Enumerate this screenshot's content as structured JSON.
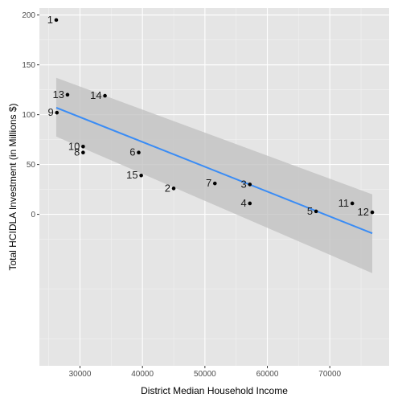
{
  "chart_data": {
    "type": "scatter",
    "title": "",
    "xlabel": "District Median Household Income",
    "ylabel": "Total HCIDLA Investment (in Millions $)",
    "xlim": [
      23500,
      79500
    ],
    "ylim": [
      -152,
      207
    ],
    "x_ticks": [
      30000,
      40000,
      50000,
      60000,
      70000
    ],
    "x_tick_labels": [
      "30000",
      "40000",
      "50000",
      "60000",
      "70000"
    ],
    "y_ticks": [
      0,
      50,
      100,
      150,
      200
    ],
    "y_tick_labels": [
      "0",
      "50",
      "100",
      "150",
      "200"
    ],
    "grid": true,
    "legend": "none",
    "points": [
      {
        "label": "1",
        "x": 26200,
        "y": 195
      },
      {
        "label": "2",
        "x": 45000,
        "y": 26
      },
      {
        "label": "3",
        "x": 57200,
        "y": 30
      },
      {
        "label": "4",
        "x": 57200,
        "y": 11
      },
      {
        "label": "5",
        "x": 67800,
        "y": 3
      },
      {
        "label": "6",
        "x": 39400,
        "y": 62
      },
      {
        "label": "7",
        "x": 51600,
        "y": 31
      },
      {
        "label": "8",
        "x": 30500,
        "y": 62
      },
      {
        "label": "9",
        "x": 26300,
        "y": 102
      },
      {
        "label": "10",
        "x": 30500,
        "y": 68
      },
      {
        "label": "11",
        "x": 73600,
        "y": 11
      },
      {
        "label": "12",
        "x": 76800,
        "y": 2
      },
      {
        "label": "13",
        "x": 28000,
        "y": 120
      },
      {
        "label": "14",
        "x": 34000,
        "y": 119
      },
      {
        "label": "15",
        "x": 39800,
        "y": 39
      }
    ],
    "fit": {
      "method": "linear regression",
      "x": [
        26200,
        76800
      ],
      "y": [
        107,
        -19
      ],
      "ci_lower": [
        78,
        -59
      ],
      "ci_upper": [
        137,
        20
      ]
    },
    "colors": {
      "panel": "#e5e5e5",
      "grid_major": "#ffffff",
      "grid_minor": "#f2f2f2",
      "point": "#000000",
      "fit_line": "#3a8cf5",
      "ci_band": "#bfbfbf"
    }
  }
}
